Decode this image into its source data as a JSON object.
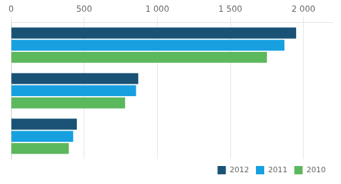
{
  "chart_data": {
    "type": "bar",
    "orientation": "horizontal",
    "categories": [
      null,
      null,
      null
    ],
    "series": [
      {
        "name": "2012",
        "color": "#1a5276",
        "values": [
          1950,
          870,
          450
        ]
      },
      {
        "name": "2011",
        "color": "#17a0e0",
        "values": [
          1870,
          855,
          425
        ]
      },
      {
        "name": "2010",
        "color": "#5cb85c",
        "values": [
          1750,
          780,
          395
        ]
      }
    ],
    "xlim": [
      0,
      2200
    ],
    "xticks": [
      0,
      500,
      {
        "value": 1000,
        "label": "1 000"
      },
      {
        "value": 1500,
        "label": "1 500"
      },
      {
        "value": 2000,
        "label": "2 000"
      }
    ],
    "grid": true,
    "legend": "lower right",
    "tick_labels": "x"
  }
}
